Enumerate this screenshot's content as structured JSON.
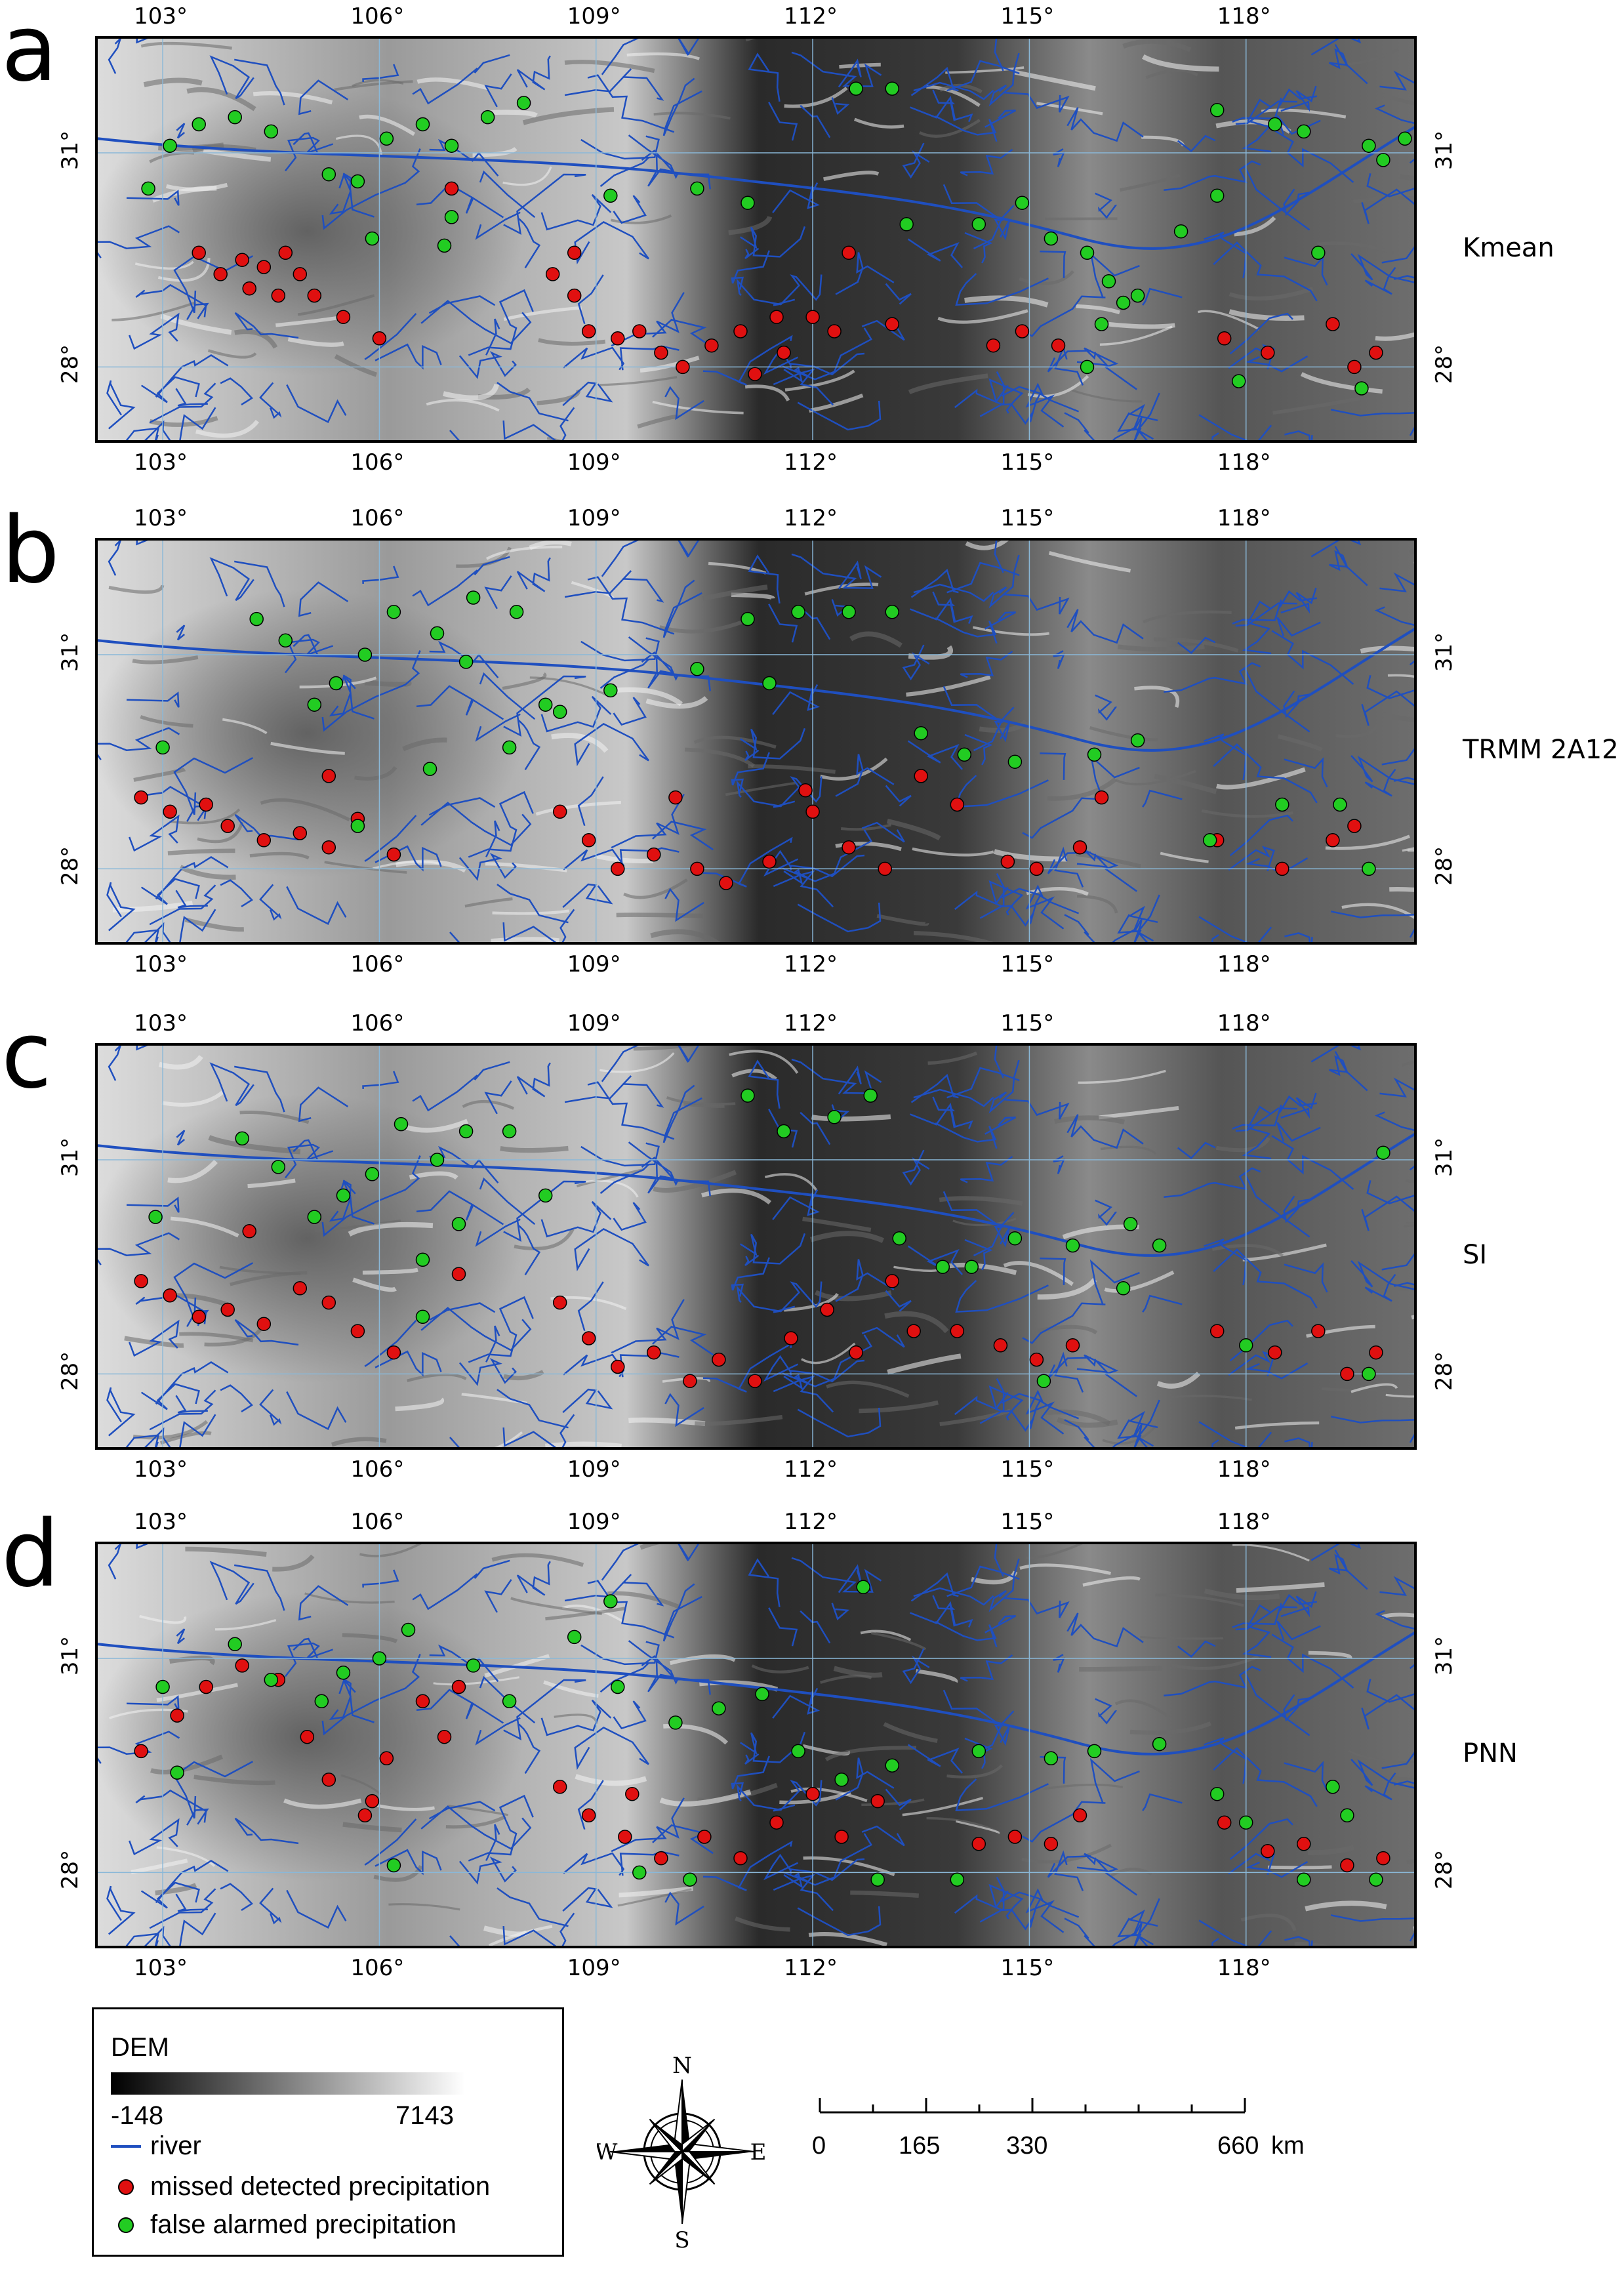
{
  "colors": {
    "river": "#1f4fbf",
    "missed": "#e01010",
    "false_alarm": "#22cc22",
    "grid": "#8ab8d8"
  },
  "lon_ticks": [
    "103°",
    "106°",
    "109°",
    "112°",
    "115°",
    "118°"
  ],
  "lat_ticks": [
    "31°",
    "28°"
  ],
  "panels": [
    {
      "letter": "a",
      "method": "Kmean"
    },
    {
      "letter": "b",
      "method": "TRMM 2A12"
    },
    {
      "letter": "c",
      "method": "SI"
    },
    {
      "letter": "d",
      "method": "PNN"
    }
  ],
  "legend": {
    "dem_title": "DEM",
    "dem_min": "-148",
    "dem_max": "7143",
    "river": "river",
    "missed": "missed detected precipitation",
    "false_alarm": "false alarmed precipitation"
  },
  "compass": {
    "n": "N",
    "s": "S",
    "e": "E",
    "w": "W"
  },
  "scale": {
    "labels": [
      "0",
      "165",
      "330",
      "660"
    ],
    "unit": "km"
  },
  "map_data": [
    {
      "missed": [
        [
          104.1,
          29.5
        ],
        [
          104.4,
          29.4
        ],
        [
          104.7,
          29.6
        ],
        [
          103.8,
          29.3
        ],
        [
          104.2,
          29.1
        ],
        [
          104.9,
          29.3
        ],
        [
          105.1,
          29.0
        ],
        [
          105.5,
          28.7
        ],
        [
          103.5,
          29.6
        ],
        [
          104.6,
          29.0
        ],
        [
          108.4,
          29.3
        ],
        [
          108.7,
          29.0
        ],
        [
          108.9,
          28.5
        ],
        [
          109.3,
          28.4
        ],
        [
          109.6,
          28.5
        ],
        [
          109.9,
          28.2
        ],
        [
          110.2,
          28.0
        ],
        [
          110.6,
          28.3
        ],
        [
          111.0,
          28.5
        ],
        [
          111.2,
          27.9
        ],
        [
          111.6,
          28.2
        ],
        [
          112.0,
          28.7
        ],
        [
          112.3,
          28.5
        ],
        [
          112.5,
          29.6
        ],
        [
          113.1,
          28.6
        ],
        [
          114.5,
          28.3
        ],
        [
          114.9,
          28.5
        ],
        [
          115.4,
          28.3
        ],
        [
          117.7,
          28.4
        ],
        [
          118.3,
          28.2
        ],
        [
          119.2,
          28.6
        ],
        [
          119.5,
          28.0
        ],
        [
          119.8,
          28.2
        ],
        [
          106.0,
          28.4
        ],
        [
          111.5,
          28.7
        ],
        [
          107.0,
          30.5
        ],
        [
          108.7,
          29.6
        ]
      ],
      "false": [
        [
          102.8,
          30.5
        ],
        [
          103.1,
          31.1
        ],
        [
          103.5,
          31.4
        ],
        [
          104.0,
          31.5
        ],
        [
          104.5,
          31.3
        ],
        [
          105.3,
          30.7
        ],
        [
          105.7,
          30.6
        ],
        [
          106.1,
          31.2
        ],
        [
          106.6,
          31.4
        ],
        [
          107.0,
          31.1
        ],
        [
          107.5,
          31.5
        ],
        [
          108.0,
          31.7
        ],
        [
          107.0,
          30.1
        ],
        [
          105.9,
          29.8
        ],
        [
          106.9,
          29.7
        ],
        [
          109.2,
          30.4
        ],
        [
          110.4,
          30.5
        ],
        [
          111.1,
          30.3
        ],
        [
          112.6,
          31.9
        ],
        [
          113.1,
          31.9
        ],
        [
          113.3,
          30.0
        ],
        [
          114.3,
          30.0
        ],
        [
          114.9,
          30.3
        ],
        [
          115.3,
          29.8
        ],
        [
          115.8,
          29.6
        ],
        [
          116.1,
          29.2
        ],
        [
          116.3,
          28.9
        ],
        [
          116.0,
          28.6
        ],
        [
          116.5,
          29.0
        ],
        [
          117.1,
          29.9
        ],
        [
          117.6,
          30.4
        ],
        [
          119.0,
          29.6
        ],
        [
          119.7,
          31.1
        ],
        [
          119.9,
          30.9
        ],
        [
          120.2,
          31.2
        ],
        [
          118.8,
          31.3
        ],
        [
          117.6,
          31.6
        ],
        [
          118.4,
          31.4
        ],
        [
          115.8,
          28.0
        ],
        [
          117.9,
          27.8
        ],
        [
          119.6,
          27.7
        ]
      ]
    },
    {
      "missed": [
        [
          102.7,
          29.0
        ],
        [
          103.1,
          28.8
        ],
        [
          103.6,
          28.9
        ],
        [
          103.9,
          28.6
        ],
        [
          104.4,
          28.4
        ],
        [
          104.9,
          28.5
        ],
        [
          105.3,
          28.3
        ],
        [
          105.7,
          28.7
        ],
        [
          106.2,
          28.2
        ],
        [
          108.5,
          28.8
        ],
        [
          108.9,
          28.4
        ],
        [
          109.3,
          28.0
        ],
        [
          109.8,
          28.2
        ],
        [
          110.4,
          28.0
        ],
        [
          110.8,
          27.8
        ],
        [
          111.4,
          28.1
        ],
        [
          112.0,
          28.8
        ],
        [
          112.5,
          28.3
        ],
        [
          113.0,
          28.0
        ],
        [
          113.5,
          29.3
        ],
        [
          114.0,
          28.9
        ],
        [
          114.7,
          28.1
        ],
        [
          115.1,
          28.0
        ],
        [
          115.7,
          28.3
        ],
        [
          117.6,
          28.4
        ],
        [
          118.5,
          28.0
        ],
        [
          119.2,
          28.4
        ],
        [
          119.5,
          28.6
        ],
        [
          105.3,
          29.3
        ],
        [
          111.9,
          29.1
        ],
        [
          110.1,
          29.0
        ],
        [
          116.0,
          29.0
        ]
      ],
      "false": [
        [
          103.0,
          29.7
        ],
        [
          104.3,
          31.5
        ],
        [
          104.7,
          31.2
        ],
        [
          105.1,
          30.3
        ],
        [
          105.4,
          30.6
        ],
        [
          105.8,
          31.0
        ],
        [
          106.2,
          31.6
        ],
        [
          106.8,
          31.3
        ],
        [
          107.3,
          31.8
        ],
        [
          107.9,
          31.6
        ],
        [
          107.2,
          30.9
        ],
        [
          107.8,
          29.7
        ],
        [
          108.5,
          30.2
        ],
        [
          109.2,
          30.5
        ],
        [
          110.4,
          30.8
        ],
        [
          111.1,
          31.5
        ],
        [
          111.4,
          30.6
        ],
        [
          111.8,
          31.6
        ],
        [
          112.5,
          31.6
        ],
        [
          113.1,
          31.6
        ],
        [
          113.5,
          29.9
        ],
        [
          114.1,
          29.6
        ],
        [
          114.8,
          29.5
        ],
        [
          115.9,
          29.6
        ],
        [
          116.5,
          29.8
        ],
        [
          117.5,
          28.4
        ],
        [
          118.5,
          28.9
        ],
        [
          119.3,
          28.9
        ],
        [
          119.7,
          28.0
        ],
        [
          106.7,
          29.4
        ],
        [
          108.3,
          30.3
        ],
        [
          105.7,
          28.6
        ]
      ]
    },
    {
      "missed": [
        [
          102.7,
          29.3
        ],
        [
          103.1,
          29.1
        ],
        [
          103.5,
          28.8
        ],
        [
          103.9,
          28.9
        ],
        [
          104.4,
          28.7
        ],
        [
          104.9,
          29.2
        ],
        [
          105.3,
          29.0
        ],
        [
          105.7,
          28.6
        ],
        [
          106.2,
          28.3
        ],
        [
          108.5,
          29.0
        ],
        [
          108.9,
          28.5
        ],
        [
          109.3,
          28.1
        ],
        [
          109.8,
          28.3
        ],
        [
          110.3,
          27.9
        ],
        [
          110.7,
          28.2
        ],
        [
          111.2,
          27.9
        ],
        [
          111.7,
          28.5
        ],
        [
          112.2,
          28.9
        ],
        [
          112.6,
          28.3
        ],
        [
          113.1,
          29.3
        ],
        [
          113.4,
          28.6
        ],
        [
          114.0,
          28.6
        ],
        [
          114.6,
          28.4
        ],
        [
          115.1,
          28.2
        ],
        [
          115.6,
          28.4
        ],
        [
          117.6,
          28.6
        ],
        [
          118.4,
          28.3
        ],
        [
          119.0,
          28.6
        ],
        [
          119.4,
          28.0
        ],
        [
          119.8,
          28.3
        ],
        [
          107.1,
          29.4
        ],
        [
          104.2,
          30.0
        ]
      ],
      "false": [
        [
          102.9,
          30.2
        ],
        [
          104.1,
          31.3
        ],
        [
          104.6,
          30.9
        ],
        [
          105.1,
          30.2
        ],
        [
          105.5,
          30.5
        ],
        [
          105.9,
          30.8
        ],
        [
          106.3,
          31.5
        ],
        [
          106.8,
          31.0
        ],
        [
          107.2,
          31.4
        ],
        [
          107.8,
          31.4
        ],
        [
          108.3,
          30.5
        ],
        [
          107.1,
          30.1
        ],
        [
          106.6,
          29.6
        ],
        [
          111.1,
          31.9
        ],
        [
          111.6,
          31.4
        ],
        [
          112.3,
          31.6
        ],
        [
          112.8,
          31.9
        ],
        [
          113.2,
          29.9
        ],
        [
          114.2,
          29.5
        ],
        [
          114.8,
          29.9
        ],
        [
          115.6,
          29.8
        ],
        [
          116.3,
          29.2
        ],
        [
          116.4,
          30.1
        ],
        [
          116.8,
          29.8
        ],
        [
          115.2,
          27.9
        ],
        [
          118.0,
          28.4
        ],
        [
          119.7,
          28.0
        ],
        [
          119.9,
          31.1
        ],
        [
          113.8,
          29.5
        ],
        [
          106.6,
          28.8
        ]
      ]
    },
    {
      "missed": [
        [
          102.7,
          29.7
        ],
        [
          103.2,
          30.2
        ],
        [
          103.6,
          30.6
        ],
        [
          104.1,
          30.9
        ],
        [
          104.6,
          30.7
        ],
        [
          105.0,
          29.9
        ],
        [
          105.3,
          29.3
        ],
        [
          105.8,
          28.8
        ],
        [
          106.1,
          29.6
        ],
        [
          106.6,
          30.4
        ],
        [
          107.1,
          30.6
        ],
        [
          106.9,
          29.9
        ],
        [
          108.5,
          29.2
        ],
        [
          108.9,
          28.8
        ],
        [
          109.4,
          28.5
        ],
        [
          109.9,
          28.2
        ],
        [
          110.5,
          28.5
        ],
        [
          111.0,
          28.2
        ],
        [
          111.5,
          28.7
        ],
        [
          112.0,
          29.1
        ],
        [
          112.4,
          28.5
        ],
        [
          112.9,
          29.0
        ],
        [
          114.3,
          28.4
        ],
        [
          114.8,
          28.5
        ],
        [
          115.3,
          28.4
        ],
        [
          115.7,
          28.8
        ],
        [
          117.7,
          28.7
        ],
        [
          118.3,
          28.3
        ],
        [
          118.8,
          28.4
        ],
        [
          119.4,
          28.1
        ],
        [
          119.9,
          28.2
        ],
        [
          105.9,
          29.0
        ],
        [
          109.5,
          29.1
        ]
      ],
      "false": [
        [
          103.0,
          30.6
        ],
        [
          104.0,
          31.2
        ],
        [
          104.5,
          30.7
        ],
        [
          105.2,
          30.4
        ],
        [
          105.5,
          30.8
        ],
        [
          106.0,
          31.0
        ],
        [
          106.4,
          31.4
        ],
        [
          107.3,
          30.9
        ],
        [
          107.8,
          30.4
        ],
        [
          108.7,
          31.3
        ],
        [
          109.3,
          30.6
        ],
        [
          109.2,
          31.8
        ],
        [
          110.1,
          30.1
        ],
        [
          110.7,
          30.3
        ],
        [
          111.3,
          30.5
        ],
        [
          111.8,
          29.7
        ],
        [
          112.4,
          29.3
        ],
        [
          113.1,
          29.5
        ],
        [
          112.7,
          32.0
        ],
        [
          114.3,
          29.7
        ],
        [
          115.3,
          29.6
        ],
        [
          115.9,
          29.7
        ],
        [
          116.8,
          29.8
        ],
        [
          117.6,
          29.1
        ],
        [
          118.0,
          28.7
        ],
        [
          119.2,
          29.2
        ],
        [
          119.4,
          28.8
        ],
        [
          119.8,
          27.9
        ],
        [
          118.8,
          27.9
        ],
        [
          109.6,
          28.0
        ],
        [
          110.3,
          27.9
        ],
        [
          112.9,
          27.9
        ],
        [
          114.0,
          27.9
        ],
        [
          106.2,
          28.1
        ],
        [
          103.2,
          29.4
        ]
      ]
    }
  ]
}
